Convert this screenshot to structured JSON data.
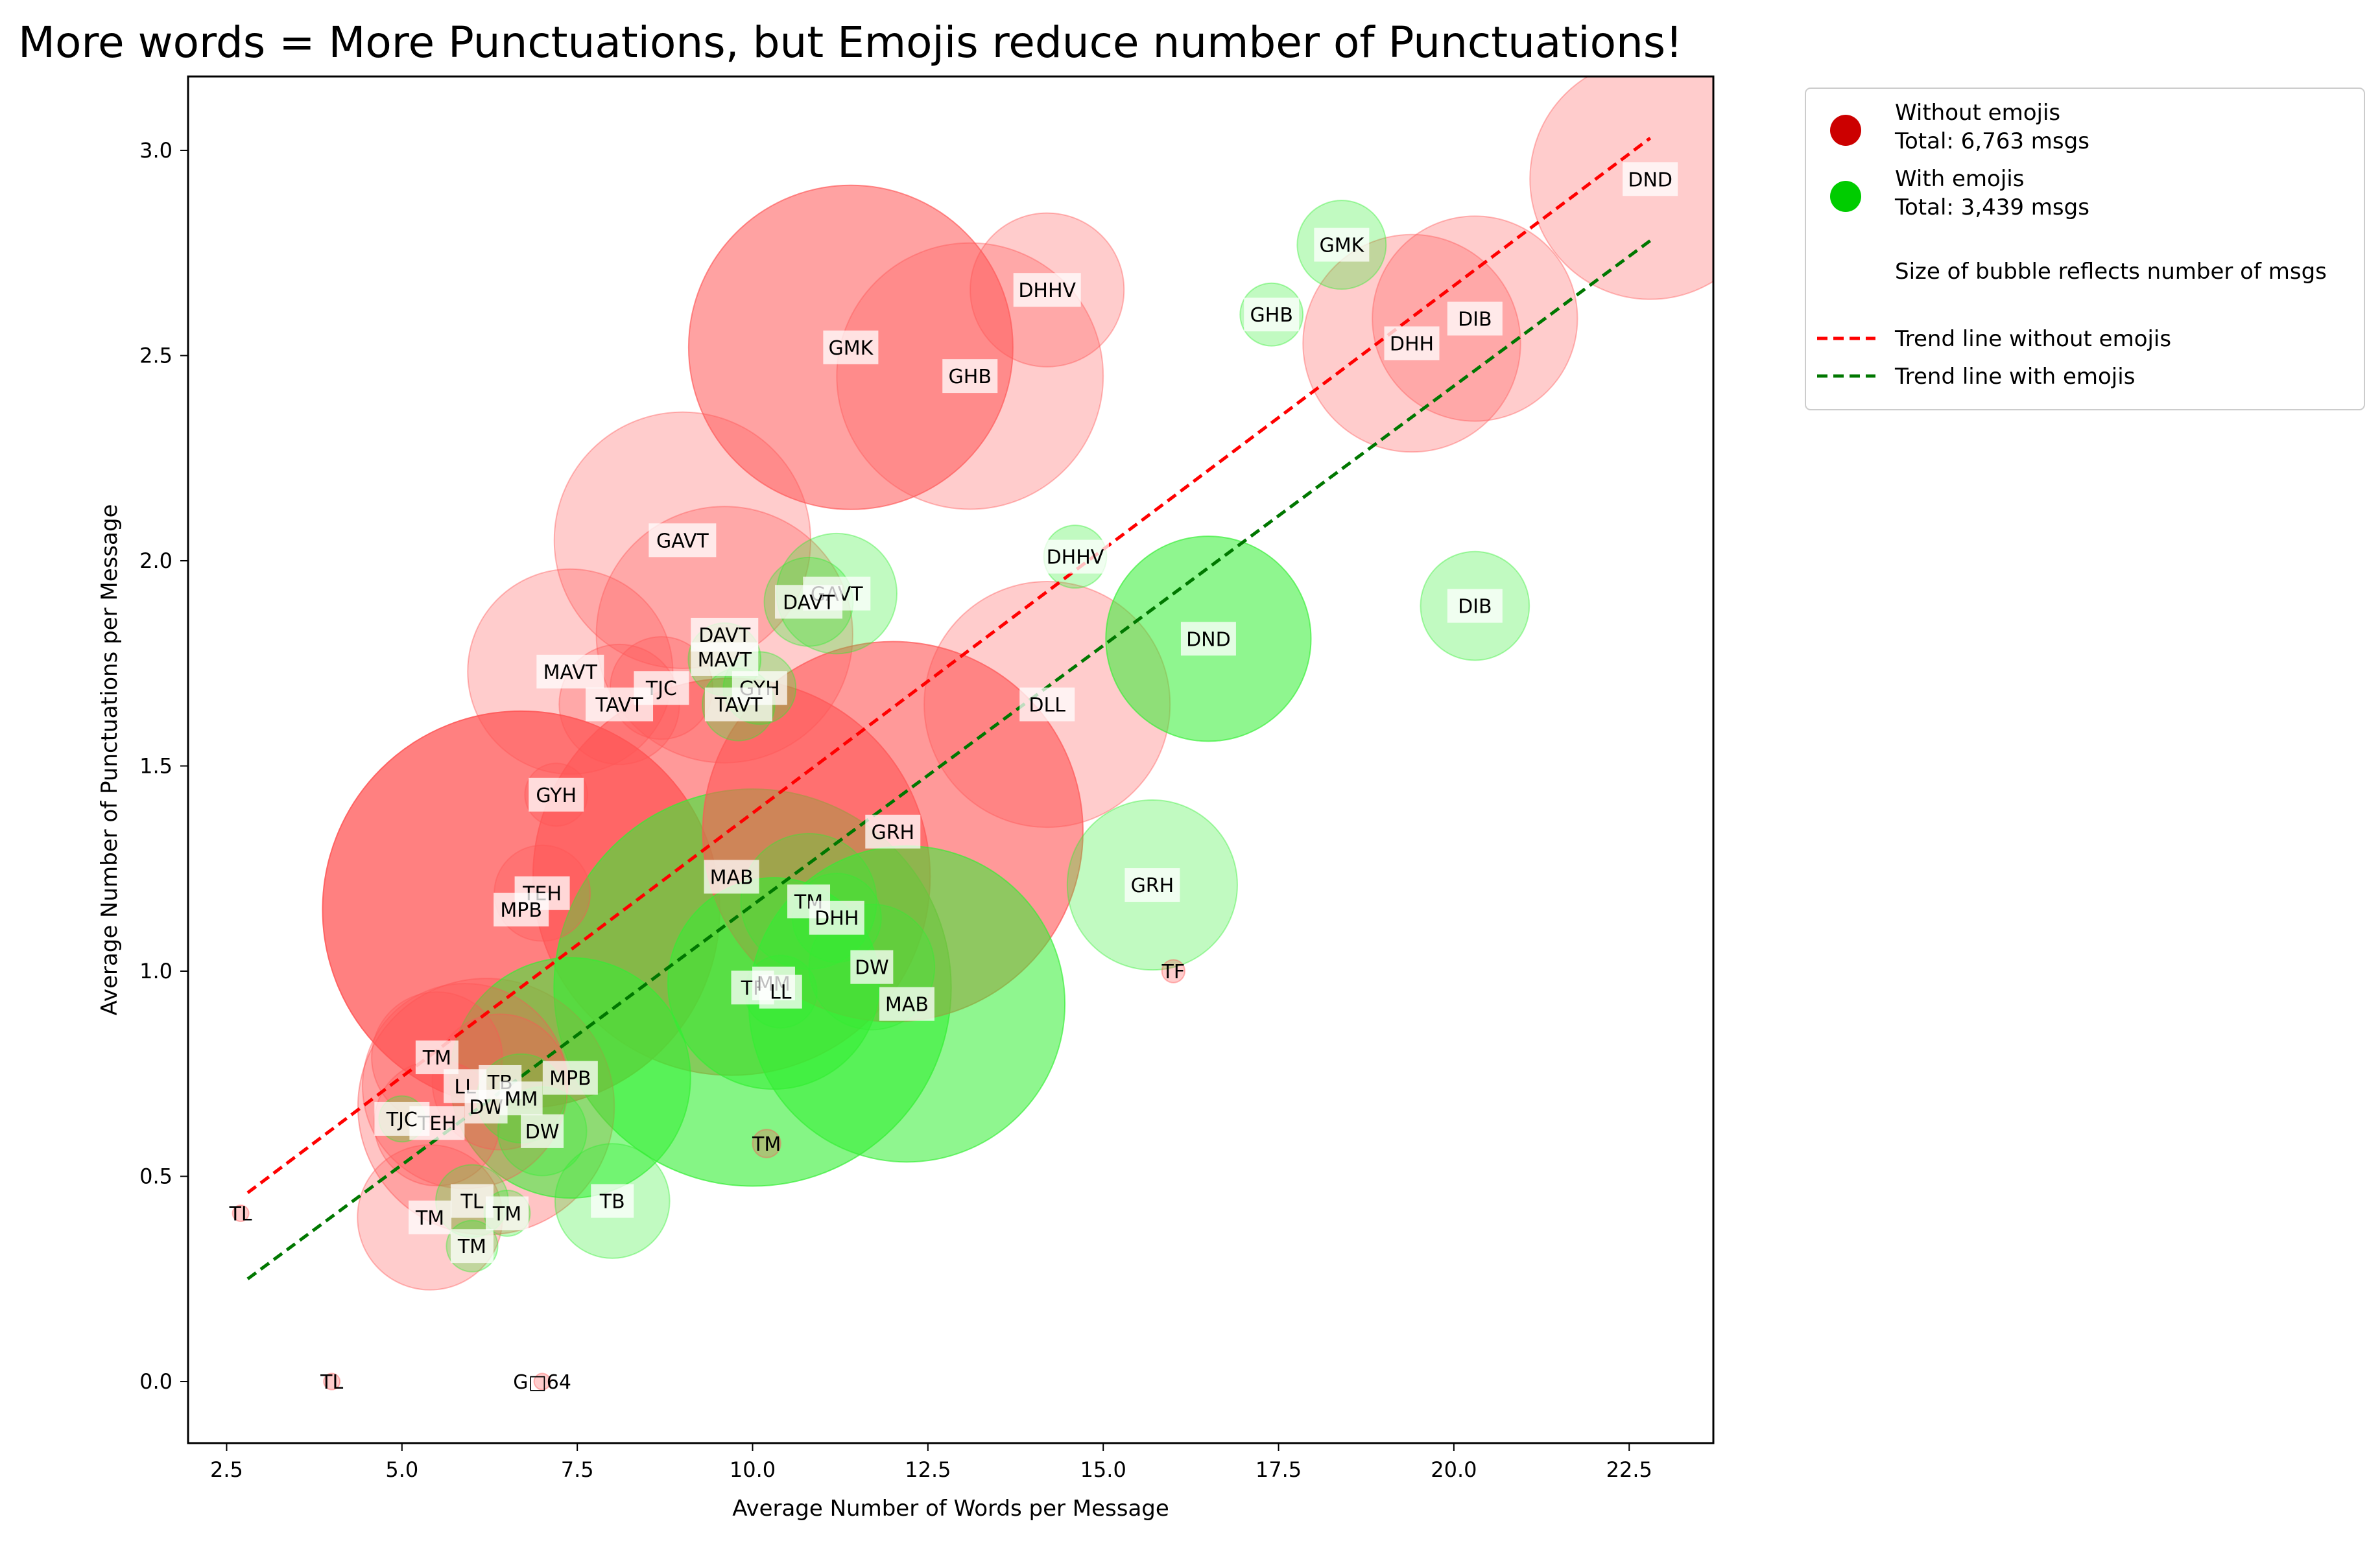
{
  "chart_data": {
    "type": "scatter",
    "title": "More words = More Punctuations, but Emojis reduce number of Punctuations!",
    "xlabel": "Average Number of Words per Message",
    "ylabel": "Average Number of Punctuations per Message",
    "xlim": [
      1.95,
      23.7
    ],
    "ylim": [
      -0.15,
      3.18
    ],
    "xticks": [
      2.5,
      5.0,
      7.5,
      10.0,
      12.5,
      15.0,
      17.5,
      20.0,
      22.5
    ],
    "yticks": [
      0.0,
      0.5,
      1.0,
      1.5,
      2.0,
      2.5,
      3.0
    ],
    "grid": false,
    "legend_position": "outside top-right",
    "size_encoding": "number of messages (bubble area)",
    "colors": {
      "without_emojis": "#ff5555",
      "without_emojis_legend": "#cc0000",
      "with_emojis": "#33ee33",
      "with_emojis_legend": "#00cc00",
      "trend_without": "#ff0000",
      "trend_with": "#007700"
    },
    "legend": [
      {
        "kind": "marker",
        "color": "#cc0000",
        "line1": "Without emojis",
        "line2": "Total: 6,763 msgs"
      },
      {
        "kind": "marker",
        "color": "#00cc00",
        "line1": "With emojis",
        "line2": "Total: 3,439 msgs"
      },
      {
        "kind": "text",
        "line1": "Size of bubble reflects number of msgs"
      },
      {
        "kind": "dash",
        "color": "#ff0000",
        "line1": "Trend line without emojis"
      },
      {
        "kind": "dash",
        "color": "#007700",
        "line1": "Trend line with emojis"
      }
    ],
    "trend_lines": [
      {
        "name": "Trend line without emojis",
        "color": "#ff0000",
        "x": [
          2.8,
          22.8
        ],
        "y": [
          0.46,
          3.03
        ]
      },
      {
        "name": "Trend line with emojis",
        "color": "#007700",
        "x": [
          2.8,
          22.8
        ],
        "y": [
          0.25,
          2.78
        ]
      }
    ],
    "series": [
      {
        "name": "Without emojis",
        "color": "#ff5555",
        "points": [
          {
            "label": "DND",
            "x": 22.8,
            "y": 2.93,
            "msgs": 220,
            "alpha": 0.3
          },
          {
            "label": "DIB",
            "x": 20.3,
            "y": 2.59,
            "msgs": 160,
            "alpha": 0.3
          },
          {
            "label": "DHH",
            "x": 19.4,
            "y": 2.53,
            "msgs": 180,
            "alpha": 0.3
          },
          {
            "label": "DHHV",
            "x": 14.2,
            "y": 2.66,
            "msgs": 90,
            "alpha": 0.3
          },
          {
            "label": "GMK",
            "x": 11.4,
            "y": 2.52,
            "msgs": 400,
            "alpha": 0.55
          },
          {
            "label": "GHB",
            "x": 13.1,
            "y": 2.45,
            "msgs": 270,
            "alpha": 0.3
          },
          {
            "label": "GAVT",
            "x": 9.0,
            "y": 2.05,
            "msgs": 250,
            "alpha": 0.3
          },
          {
            "label": "DAVT",
            "x": 9.6,
            "y": 1.82,
            "msgs": 250,
            "alpha": 0.3
          },
          {
            "label": "MAVT",
            "x": 7.4,
            "y": 1.73,
            "msgs": 160,
            "alpha": 0.3
          },
          {
            "label": "TJC",
            "x": 8.7,
            "y": 1.69,
            "msgs": 40,
            "alpha": 0.3
          },
          {
            "label": "TAVT",
            "x": 8.1,
            "y": 1.65,
            "msgs": 55,
            "alpha": 0.3
          },
          {
            "label": "DLL",
            "x": 14.2,
            "y": 1.65,
            "msgs": 230,
            "alpha": 0.3
          },
          {
            "label": "GYH",
            "x": 7.2,
            "y": 1.43,
            "msgs": 15,
            "alpha": 0.3
          },
          {
            "label": "GRH",
            "x": 12.0,
            "y": 1.34,
            "msgs": 550,
            "alpha": 0.6
          },
          {
            "label": "MAB",
            "x": 9.7,
            "y": 1.23,
            "msgs": 600,
            "alpha": 0.6
          },
          {
            "label": "TEH",
            "x": 7.0,
            "y": 1.19,
            "msgs": 35,
            "alpha": 0.3
          },
          {
            "label": "MPB",
            "x": 6.7,
            "y": 1.15,
            "msgs": 600,
            "alpha": 0.75
          },
          {
            "label": "TM",
            "x": 5.5,
            "y": 0.79,
            "msgs": 65,
            "alpha": 0.3
          },
          {
            "label": "LL",
            "x": 5.9,
            "y": 0.72,
            "msgs": 160,
            "alpha": 0.3
          },
          {
            "label": "DW",
            "x": 6.2,
            "y": 0.67,
            "msgs": 250,
            "alpha": 0.35
          },
          {
            "label": "TB",
            "x": 6.4,
            "y": 0.73,
            "msgs": 70,
            "alpha": 0.3
          },
          {
            "label": "TEH",
            "x": 5.5,
            "y": 0.63,
            "msgs": 60,
            "alpha": 0.3
          },
          {
            "label": "TM",
            "x": 5.4,
            "y": 0.4,
            "msgs": 80,
            "alpha": 0.3
          },
          {
            "label": "TM",
            "x": 10.2,
            "y": 0.58,
            "msgs": 3,
            "alpha": 0.3
          },
          {
            "label": "TF",
            "x": 16.0,
            "y": 1.0,
            "msgs": 2,
            "alpha": 0.3
          },
          {
            "label": "TL",
            "x": 2.7,
            "y": 0.41,
            "msgs": 1,
            "alpha": 0.3
          },
          {
            "label": "TL",
            "x": 4.0,
            "y": 0.0,
            "msgs": 1,
            "alpha": 0.3
          },
          {
            "label": "G□64",
            "x": 7.0,
            "y": 0.0,
            "msgs": 1,
            "alpha": 0.3
          }
        ]
      },
      {
        "name": "With emojis",
        "color": "#33ee33",
        "points": [
          {
            "label": "GMK",
            "x": 18.4,
            "y": 2.77,
            "msgs": 30,
            "alpha": 0.3
          },
          {
            "label": "GHB",
            "x": 17.4,
            "y": 2.6,
            "msgs": 15,
            "alpha": 0.3
          },
          {
            "label": "DHHV",
            "x": 14.6,
            "y": 2.01,
            "msgs": 15,
            "alpha": 0.3
          },
          {
            "label": "GAVT",
            "x": 11.2,
            "y": 1.92,
            "msgs": 55,
            "alpha": 0.3
          },
          {
            "label": "DAVT",
            "x": 10.8,
            "y": 1.9,
            "msgs": 30,
            "alpha": 0.3
          },
          {
            "label": "DIB",
            "x": 20.3,
            "y": 1.89,
            "msgs": 45,
            "alpha": 0.3
          },
          {
            "label": "DND",
            "x": 16.5,
            "y": 1.81,
            "msgs": 160,
            "alpha": 0.55
          },
          {
            "label": "MAVT",
            "x": 9.6,
            "y": 1.76,
            "msgs": 20,
            "alpha": 0.3
          },
          {
            "label": "GYH",
            "x": 10.1,
            "y": 1.69,
            "msgs": 20,
            "alpha": 0.3
          },
          {
            "label": "TAVT",
            "x": 9.8,
            "y": 1.65,
            "msgs": 20,
            "alpha": 0.3
          },
          {
            "label": "GRH",
            "x": 15.7,
            "y": 1.21,
            "msgs": 110,
            "alpha": 0.3
          },
          {
            "label": "TM",
            "x": 10.8,
            "y": 1.17,
            "msgs": 70,
            "alpha": 0.3
          },
          {
            "label": "DHH",
            "x": 11.2,
            "y": 1.13,
            "msgs": 30,
            "alpha": 0.3
          },
          {
            "label": "TF",
            "x": 10.0,
            "y": 0.96,
            "msgs": 600,
            "alpha": 0.6
          },
          {
            "label": "DW",
            "x": 11.7,
            "y": 1.01,
            "msgs": 60,
            "alpha": 0.3
          },
          {
            "label": "MM",
            "x": 10.3,
            "y": 0.97,
            "msgs": 170,
            "alpha": 0.55
          },
          {
            "label": "LL",
            "x": 10.4,
            "y": 0.95,
            "msgs": 20,
            "alpha": 0.3
          },
          {
            "label": "MAB",
            "x": 12.2,
            "y": 0.92,
            "msgs": 380,
            "alpha": 0.55
          },
          {
            "label": "MPB",
            "x": 7.4,
            "y": 0.74,
            "msgs": 220,
            "alpha": 0.55
          },
          {
            "label": "MM",
            "x": 6.7,
            "y": 0.69,
            "msgs": 30,
            "alpha": 0.3
          },
          {
            "label": "DW",
            "x": 7.0,
            "y": 0.61,
            "msgs": 30,
            "alpha": 0.3
          },
          {
            "label": "TJC",
            "x": 5.0,
            "y": 0.64,
            "msgs": 8,
            "alpha": 0.3
          },
          {
            "label": "TB",
            "x": 8.0,
            "y": 0.44,
            "msgs": 50,
            "alpha": 0.3
          },
          {
            "label": "TL",
            "x": 6.0,
            "y": 0.44,
            "msgs": 20,
            "alpha": 0.3
          },
          {
            "label": "TM",
            "x": 6.5,
            "y": 0.41,
            "msgs": 8,
            "alpha": 0.3
          },
          {
            "label": "TM",
            "x": 6.0,
            "y": 0.33,
            "msgs": 10,
            "alpha": 0.3
          }
        ]
      }
    ]
  }
}
